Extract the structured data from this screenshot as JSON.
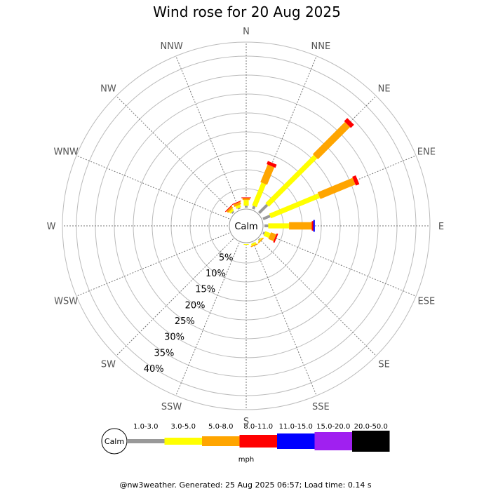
{
  "chart_data": {
    "type": "wind-rose",
    "title": "Wind rose for 20 Aug 2025",
    "directions": [
      "N",
      "NNE",
      "NE",
      "ENE",
      "E",
      "ESE",
      "SE",
      "SSE",
      "S",
      "SSW",
      "SW",
      "WSW",
      "W",
      "WNW",
      "NW",
      "NNW"
    ],
    "rings": [
      "5%",
      "10%",
      "15%",
      "20%",
      "25%",
      "30%",
      "35%",
      "40%"
    ],
    "ring_max": 40,
    "center_label": "Calm",
    "speed_bins": [
      {
        "label": "1.0-3.0",
        "color": "#999999"
      },
      {
        "label": "3.0-5.0",
        "color": "#ffff00"
      },
      {
        "label": "5.0-8.0",
        "color": "#ffa500"
      },
      {
        "label": "8.0-11.0",
        "color": "#ff0000"
      },
      {
        "label": "11.0-15.0",
        "color": "#0000ff"
      },
      {
        "label": "15.0-20.0",
        "color": "#a020f0"
      },
      {
        "label": "20.0-50.0",
        "color": "#000000"
      }
    ],
    "series": [
      {
        "direction": "N",
        "values": [
          0.5,
          1.5,
          0.5,
          0.2,
          0,
          0,
          0
        ]
      },
      {
        "direction": "NNE",
        "values": [
          0.8,
          6.5,
          5.0,
          0.9,
          0,
          0,
          0
        ]
      },
      {
        "direction": "NE",
        "values": [
          3.0,
          18.0,
          12.0,
          1.2,
          0,
          0,
          0
        ]
      },
      {
        "direction": "ENE",
        "values": [
          2.0,
          14.0,
          10.0,
          1.0,
          0,
          0,
          0
        ]
      },
      {
        "direction": "E",
        "values": [
          1.0,
          5.5,
          6.0,
          0.4,
          0.4,
          0,
          0
        ]
      },
      {
        "direction": "ESE",
        "values": [
          0.4,
          1.5,
          1.5,
          0.4,
          0,
          0,
          0
        ]
      },
      {
        "direction": "SE",
        "values": [
          0.2,
          0.3,
          0.3,
          0,
          0,
          0,
          0
        ]
      },
      {
        "direction": "SSE",
        "values": [
          0.1,
          0.5,
          0.3,
          0,
          0,
          0,
          0
        ]
      },
      {
        "direction": "S",
        "values": [
          0,
          0.2,
          0,
          0,
          0,
          0,
          0
        ]
      },
      {
        "direction": "SSW",
        "values": [
          0,
          0,
          0,
          0,
          0,
          0,
          0
        ]
      },
      {
        "direction": "SW",
        "values": [
          0,
          0,
          0,
          0,
          0,
          0,
          0
        ]
      },
      {
        "direction": "WSW",
        "values": [
          0,
          0,
          0,
          0,
          0,
          0,
          0
        ]
      },
      {
        "direction": "W",
        "values": [
          0,
          0,
          0,
          0,
          0,
          0,
          0
        ]
      },
      {
        "direction": "WNW",
        "values": [
          0,
          0,
          0,
          0,
          0,
          0,
          0
        ]
      },
      {
        "direction": "NW",
        "values": [
          0.4,
          0.6,
          0.6,
          0.2,
          0,
          0,
          0
        ]
      },
      {
        "direction": "NNW",
        "values": [
          0.3,
          0.7,
          0.7,
          0.2,
          0,
          0,
          0
        ]
      }
    ],
    "legend_calm": "Calm",
    "legend_unit": "mph",
    "footer": "@nw3weather.  Generated: 25 Aug 2025 06:57; Load time: 0.14 s"
  }
}
